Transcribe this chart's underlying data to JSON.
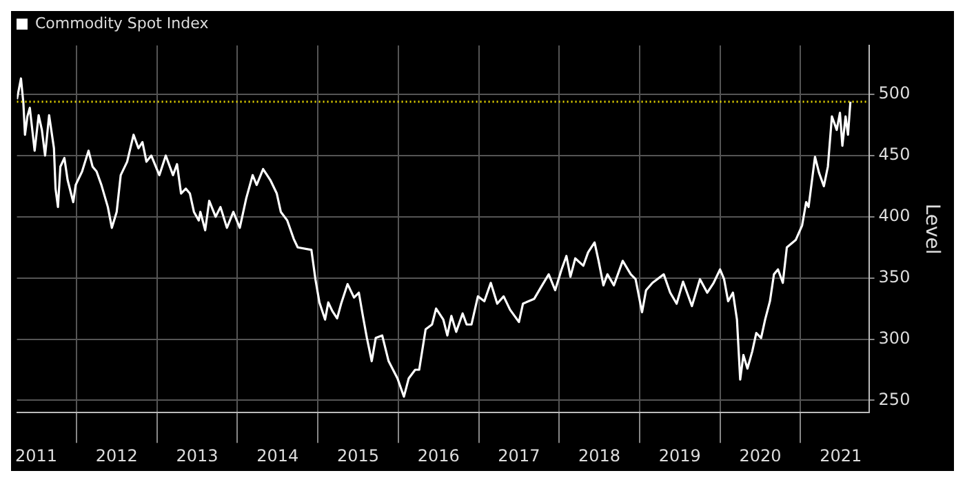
{
  "chart_data": {
    "type": "line",
    "ylabel": "Level",
    "x": [
      2011.26,
      2011.31,
      2011.34,
      2011.36,
      2011.39,
      2011.42,
      2011.48,
      2011.53,
      2011.57,
      2011.61,
      2011.66,
      2011.72,
      2011.74,
      2011.77,
      2011.8,
      2011.85,
      2011.89,
      2011.96,
      2011.99,
      2012.07,
      2012.15,
      2012.2,
      2012.25,
      2012.31,
      2012.39,
      2012.44,
      2012.5,
      2012.55,
      2012.63,
      2012.71,
      2012.77,
      2012.82,
      2012.87,
      2012.93,
      2013.03,
      2013.11,
      2013.2,
      2013.25,
      2013.3,
      2013.36,
      2013.41,
      2013.46,
      2013.52,
      2013.54,
      2013.6,
      2013.65,
      2013.73,
      2013.79,
      2013.87,
      2013.95,
      2014.03,
      2014.11,
      2014.19,
      2014.24,
      2014.32,
      2014.41,
      2014.49,
      2014.54,
      2014.62,
      2014.7,
      2014.75,
      2014.92,
      2014.97,
      2015.02,
      2015.09,
      2015.13,
      2015.18,
      2015.24,
      2015.29,
      2015.37,
      2015.45,
      2015.51,
      2015.56,
      2015.61,
      2015.67,
      2015.72,
      2015.8,
      2015.88,
      2015.99,
      2016.07,
      2016.13,
      2016.21,
      2016.26,
      2016.34,
      2016.42,
      2016.47,
      2016.56,
      2016.61,
      2016.66,
      2016.72,
      2016.8,
      2016.85,
      2016.91,
      2016.99,
      2017.07,
      2017.15,
      2017.23,
      2017.31,
      2017.39,
      2017.5,
      2017.55,
      2017.69,
      2017.77,
      2017.87,
      2017.95,
      2018.03,
      2018.09,
      2018.14,
      2018.2,
      2018.3,
      2018.36,
      2018.44,
      2018.49,
      2018.55,
      2018.6,
      2018.68,
      2018.79,
      2018.89,
      2018.95,
      2019.03,
      2019.08,
      2019.16,
      2019.3,
      2019.38,
      2019.46,
      2019.54,
      2019.65,
      2019.75,
      2019.84,
      2019.92,
      2020.0,
      2020.05,
      2020.1,
      2020.16,
      2020.21,
      2020.25,
      2020.29,
      2020.34,
      2020.4,
      2020.45,
      2020.51,
      2020.56,
      2020.62,
      2020.67,
      2020.72,
      2020.78,
      2020.83,
      2020.94,
      2021.02,
      2021.07,
      2021.1,
      2021.18,
      2021.23,
      2021.29,
      2021.34,
      2021.39,
      2021.45,
      2021.49,
      2021.52,
      2021.56,
      2021.59,
      2021.62
    ],
    "series": [
      {
        "name": "Commodity Spot Index",
        "color": "#ffffff",
        "values": [
          496,
          513,
          493,
          467,
          482,
          489,
          454,
          483,
          471,
          450,
          483,
          456,
          423,
          408,
          441,
          448,
          430,
          412,
          426,
          437,
          454,
          441,
          437,
          426,
          408,
          391,
          404,
          434,
          445,
          467,
          456,
          461,
          445,
          450,
          434,
          450,
          434,
          443,
          419,
          423,
          419,
          404,
          397,
          404,
          389,
          413,
          400,
          408,
          391,
          404,
          391,
          415,
          434,
          426,
          439,
          430,
          419,
          404,
          397,
          382,
          375,
          373,
          349,
          330,
          316,
          330,
          323,
          317,
          329,
          345,
          334,
          338,
          319,
          301,
          282,
          301,
          303,
          282,
          268,
          253,
          268,
          275,
          275,
          308,
          312,
          325,
          316,
          303,
          319,
          306,
          321,
          312,
          312,
          335,
          331,
          346,
          329,
          335,
          324,
          314,
          329,
          333,
          342,
          353,
          340,
          357,
          368,
          351,
          366,
          360,
          371,
          379,
          364,
          344,
          353,
          344,
          364,
          353,
          349,
          322,
          340,
          346,
          353,
          338,
          329,
          347,
          327,
          349,
          338,
          346,
          357,
          349,
          331,
          338,
          316,
          267,
          287,
          276,
          290,
          305,
          301,
          316,
          331,
          353,
          357,
          346,
          375,
          381,
          393,
          412,
          408,
          449,
          436,
          425,
          441,
          482,
          471,
          485,
          458,
          482,
          467,
          494
        ]
      }
    ],
    "xlim": [
      2011.26,
      2021.85
    ],
    "xticks": [
      {
        "value": 2011.5,
        "label": "2011"
      },
      {
        "value": 2012,
        "label": null
      },
      {
        "value": 2012.5,
        "label": "2012"
      },
      {
        "value": 2013,
        "label": null
      },
      {
        "value": 2013.5,
        "label": "2013"
      },
      {
        "value": 2014,
        "label": null
      },
      {
        "value": 2014.5,
        "label": "2014"
      },
      {
        "value": 2015,
        "label": null
      },
      {
        "value": 2015.5,
        "label": "2015"
      },
      {
        "value": 2016,
        "label": null
      },
      {
        "value": 2016.5,
        "label": "2016"
      },
      {
        "value": 2017,
        "label": null
      },
      {
        "value": 2017.5,
        "label": "2017"
      },
      {
        "value": 2018,
        "label": null
      },
      {
        "value": 2018.5,
        "label": "2018"
      },
      {
        "value": 2019,
        "label": null
      },
      {
        "value": 2019.5,
        "label": "2019"
      },
      {
        "value": 2020,
        "label": null
      },
      {
        "value": 2020.5,
        "label": "2020"
      },
      {
        "value": 2021,
        "label": null
      },
      {
        "value": 2021.5,
        "label": "2021"
      }
    ],
    "ylim": [
      240,
      540
    ],
    "yticks": [
      250,
      300,
      350,
      400,
      450,
      500
    ],
    "ref_lines": [
      {
        "axis": "y",
        "value": 494,
        "color": "#e6d600",
        "line_style": "dotted"
      }
    ],
    "grid": true,
    "legend": "top left",
    "marker": "none",
    "line_style": "solid"
  }
}
